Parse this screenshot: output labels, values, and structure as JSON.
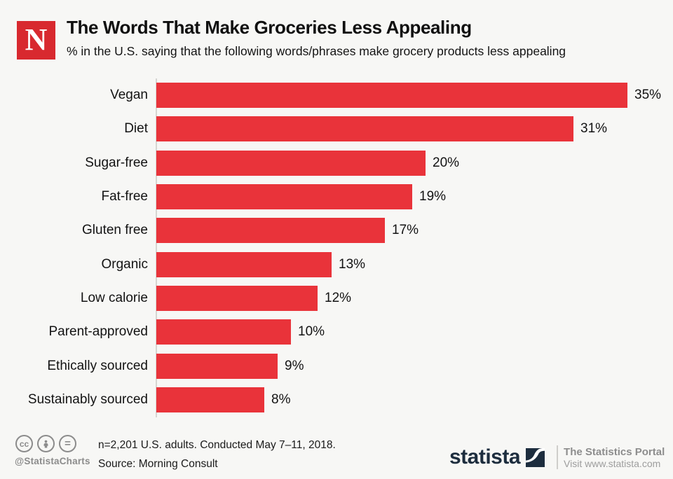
{
  "header": {
    "logo_letter": "N",
    "title": "The Words That Make Groceries Less Appealing",
    "subtitle": "% in the U.S. saying that the following words/phrases make grocery products less appealing"
  },
  "chart_data": {
    "type": "bar",
    "orientation": "horizontal",
    "title": "The Words That Make Groceries Less Appealing",
    "categories": [
      "Vegan",
      "Diet",
      "Sugar-free",
      "Fat-free",
      "Gluten free",
      "Organic",
      "Low calorie",
      "Parent-approved",
      "Ethically sourced",
      "Sustainably sourced"
    ],
    "values": [
      35,
      31,
      20,
      19,
      17,
      13,
      12,
      10,
      9,
      8
    ],
    "value_suffix": "%",
    "xlim": [
      0,
      36
    ],
    "grid": false,
    "legend": false,
    "data_labels": true,
    "bar_color": "#E9333A"
  },
  "footer": {
    "license_icons": [
      "cc",
      "person",
      "equals"
    ],
    "cc_label": "cc",
    "equals_label": "=",
    "handle": "@StatistaCharts",
    "note": "n=2,201 U.S. adults. Conducted May 7–11, 2018.",
    "source": "Source: Morning Consult",
    "brand": {
      "wordmark": "statista",
      "tagline": "The Statistics Portal",
      "url_line": "Visit www.statista.com"
    }
  },
  "colors": {
    "background": "#F7F7F5",
    "bar": "#E9333A",
    "newsweek_red": "#D8292F",
    "statista_navy": "#1D2D3E",
    "gray_text": "#8C8C8C"
  }
}
